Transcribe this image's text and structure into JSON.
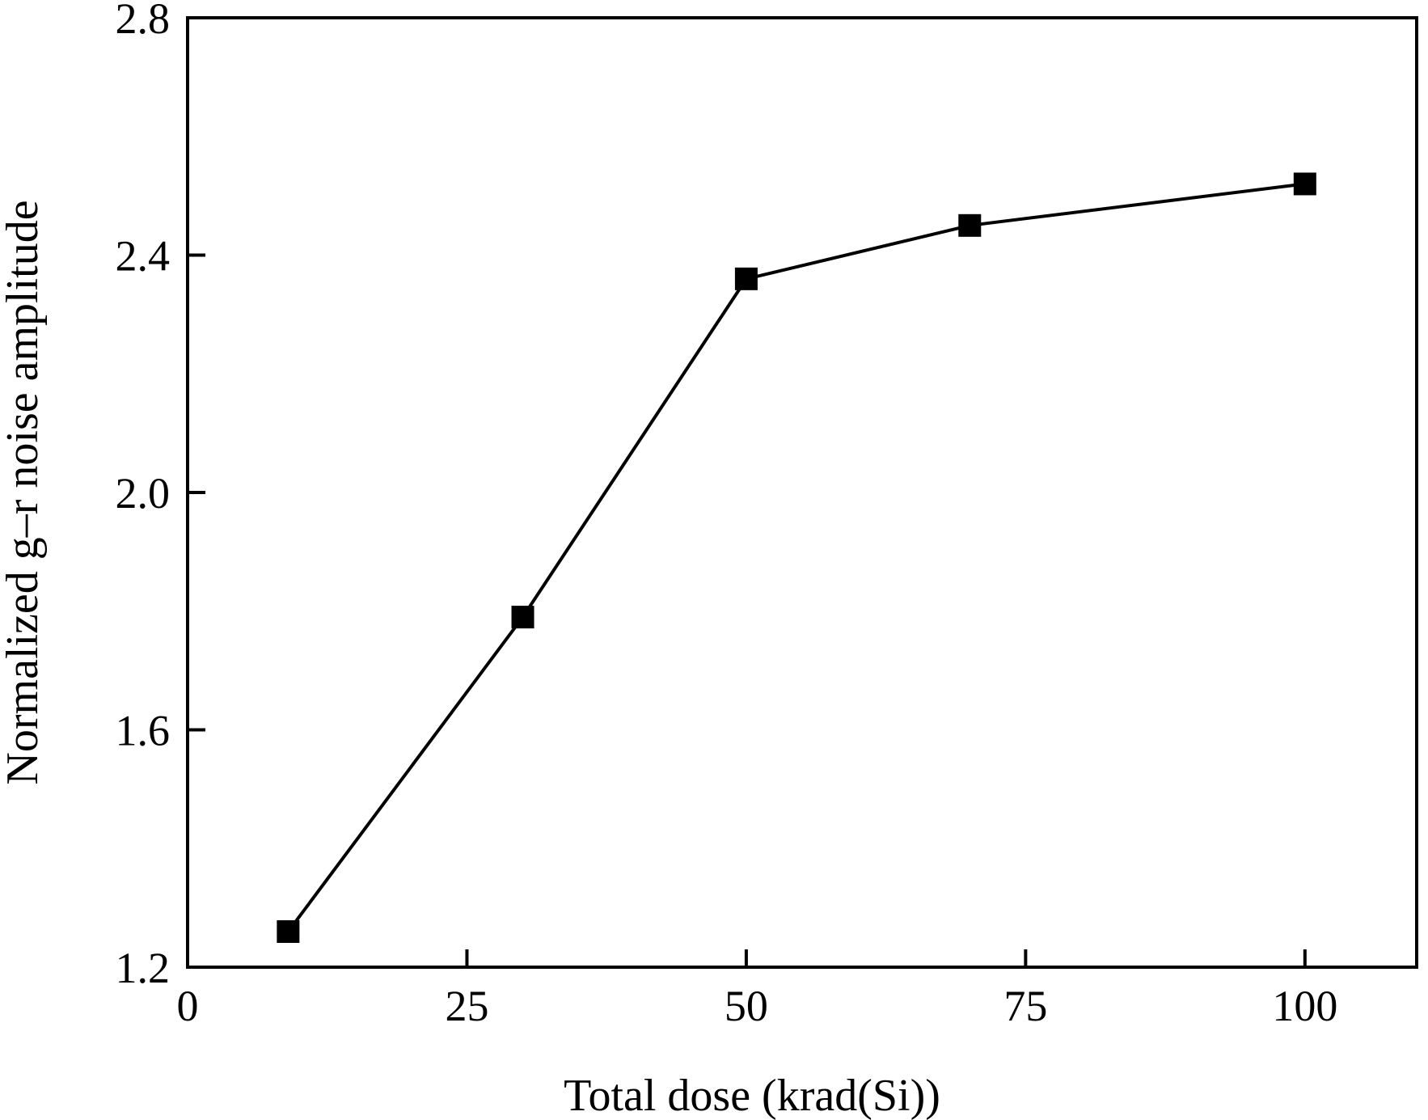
{
  "chart_data": {
    "type": "line",
    "title": "",
    "xlabel": "Total dose (krad(Si))",
    "ylabel": "Normalized g–r noise amplitude",
    "xlim": [
      0,
      110
    ],
    "ylim": [
      1.2,
      2.8
    ],
    "xticks": [
      0,
      25,
      50,
      75,
      100
    ],
    "xtick_labels": [
      "0",
      "25",
      "50",
      "75",
      "100"
    ],
    "yticks": [
      1.2,
      1.6,
      2.0,
      2.4,
      2.8
    ],
    "ytick_labels": [
      "1.2",
      "1.6",
      "2.0",
      "2.4",
      "2.8"
    ],
    "grid": false,
    "legend": "none",
    "series": [
      {
        "marker": "square",
        "color": "#000000",
        "x": [
          9,
          30,
          50,
          70,
          100
        ],
        "y": [
          1.26,
          1.79,
          2.36,
          2.45,
          2.52
        ]
      }
    ]
  }
}
